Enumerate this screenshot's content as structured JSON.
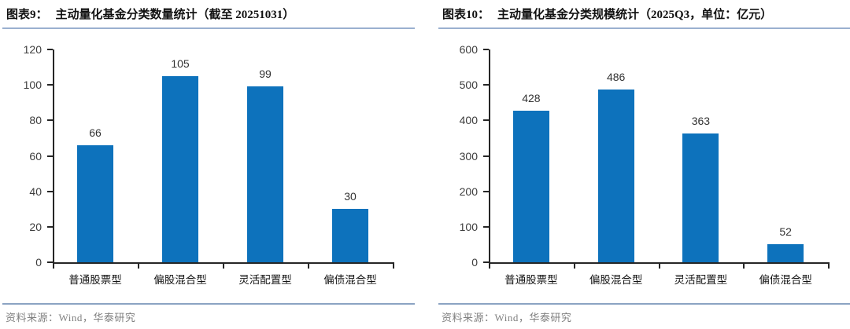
{
  "panels": [
    {
      "title_prefix": "图表9：",
      "title": "主动量化基金分类数量统计（截至 20251031）",
      "source": "资料来源：Wind，华泰研究"
    },
    {
      "title_prefix": "图表10：",
      "title": "主动量化基金分类规模统计（2025Q3，单位：亿元）",
      "source": "资料来源：Wind，华泰研究"
    }
  ],
  "chart_data": [
    {
      "type": "bar",
      "title": "主动量化基金分类数量统计（截至 20251031）",
      "categories": [
        "普通股票型",
        "偏股混合型",
        "灵活配置型",
        "偏债混合型"
      ],
      "values": [
        66,
        105,
        99,
        30
      ],
      "xlabel": "",
      "ylabel": "",
      "ylim": [
        0,
        120
      ],
      "ytick_step": 20,
      "grid": false,
      "legend": "none",
      "value_labels": true,
      "bar_color": "#0d72bc"
    },
    {
      "type": "bar",
      "title": "主动量化基金分类规模统计（2025Q3，单位：亿元）",
      "categories": [
        "普通股票型",
        "偏股混合型",
        "灵活配置型",
        "偏债混合型"
      ],
      "values": [
        428,
        486,
        363,
        52
      ],
      "xlabel": "",
      "ylabel": "",
      "ylim": [
        0,
        600
      ],
      "ytick_step": 100,
      "grid": false,
      "legend": "none",
      "value_labels": true,
      "bar_color": "#0d72bc"
    }
  ],
  "colors": {
    "bar": "#0d72bc",
    "title_underline": "#9ab0d0",
    "source_rule": "#8ba3c3",
    "axis": "#262626",
    "tick_text": "#3d3d3d",
    "category_text": "#141414",
    "source_text": "#7f7f7f"
  }
}
